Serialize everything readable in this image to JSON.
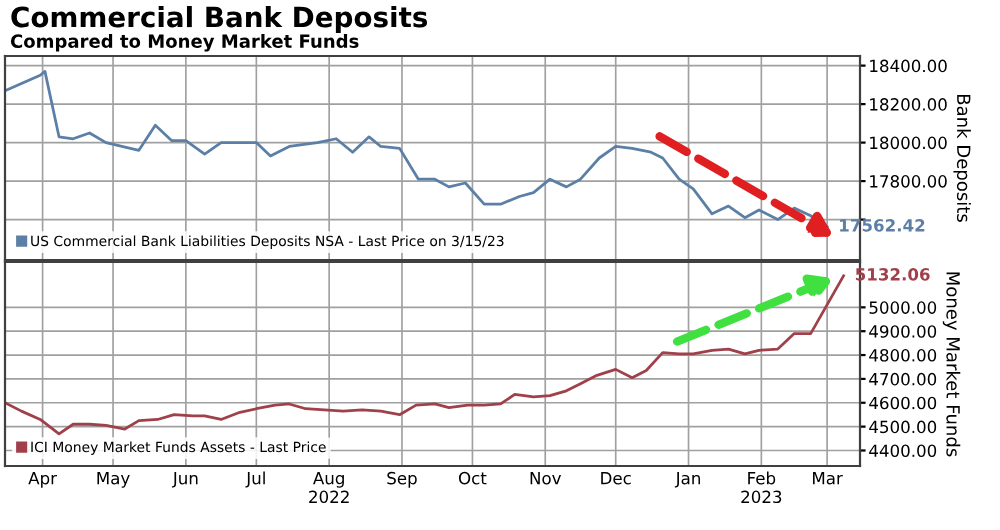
{
  "chart_data": [
    {
      "type": "line",
      "title": "Commercial Bank Deposits",
      "subtitle": "Compared to Money Market Funds",
      "ylabel": "Bank Deposits",
      "xlim": [
        "2022-03-30",
        "2023-03-29"
      ],
      "xticks": [
        {
          "value": "2022-04-15",
          "label": null
        },
        {
          "value": "2022-05-15",
          "label": null
        },
        {
          "value": "2022-06-15",
          "label": null
        },
        {
          "value": "2022-07-15",
          "label": null
        },
        {
          "value": "2022-08-15",
          "label": null
        },
        {
          "value": "2022-09-15",
          "label": null
        },
        {
          "value": "2022-10-15",
          "label": null
        },
        {
          "value": "2022-11-15",
          "label": null
        },
        {
          "value": "2022-12-15",
          "label": null
        },
        {
          "value": "2023-01-15",
          "label": null
        },
        {
          "value": "2023-02-15",
          "label": null
        },
        {
          "value": "2023-03-15",
          "label": null
        }
      ],
      "ylim": [
        17390,
        18450
      ],
      "yticks": [
        {
          "value": 17600,
          "label": null
        },
        {
          "value": 17800,
          "label": "17800.00"
        },
        {
          "value": 18000,
          "label": "18000.00"
        },
        {
          "value": 18200,
          "label": "18200.00"
        },
        {
          "value": 18400,
          "label": "18400.00"
        }
      ],
      "tick_labels": "y",
      "grid": true,
      "legend": "bottom left",
      "marker": "none",
      "line_style": "solid",
      "series": [
        {
          "name": "US Commercial Bank Liabilities Deposits NSA - Last Price on 3/15/23",
          "color": "#5b7fa6",
          "x": [
            "2022-03-30",
            "2022-04-14",
            "2022-04-16",
            "2022-04-22",
            "2022-04-28",
            "2022-05-05",
            "2022-05-12",
            "2022-05-26",
            "2022-06-02",
            "2022-06-09",
            "2022-06-15",
            "2022-06-23",
            "2022-06-30",
            "2022-07-15",
            "2022-07-21",
            "2022-07-29",
            "2022-08-10",
            "2022-08-18",
            "2022-08-25",
            "2022-09-01",
            "2022-09-06",
            "2022-09-14",
            "2022-09-22",
            "2022-09-29",
            "2022-10-05",
            "2022-10-12",
            "2022-10-20",
            "2022-10-27",
            "2022-11-04",
            "2022-11-10",
            "2022-11-17",
            "2022-11-24",
            "2022-11-30",
            "2022-12-08",
            "2022-12-15",
            "2022-12-22",
            "2022-12-30",
            "2023-01-04",
            "2023-01-11",
            "2023-01-17",
            "2023-01-25",
            "2023-02-01",
            "2023-02-08",
            "2023-02-14",
            "2023-02-22",
            "2023-03-01",
            "2023-03-08",
            "2023-03-15"
          ],
          "values": [
            18270,
            18350,
            18370,
            18030,
            18020,
            18050,
            18000,
            17960,
            18090,
            18010,
            18010,
            17940,
            18000,
            18000,
            17930,
            17980,
            18000,
            18020,
            17950,
            18030,
            17980,
            17970,
            17810,
            17810,
            17770,
            17790,
            17680,
            17680,
            17720,
            17740,
            17810,
            17770,
            17810,
            17920,
            17980,
            17970,
            17950,
            17920,
            17810,
            17760,
            17630,
            17670,
            17610,
            17650,
            17600,
            17660,
            17620,
            17562.42
          ],
          "value_labels": [
            null,
            null,
            null,
            null,
            null,
            null,
            null,
            null,
            null,
            null,
            null,
            null,
            null,
            null,
            null,
            null,
            null,
            null,
            null,
            null,
            null,
            null,
            null,
            null,
            null,
            null,
            null,
            null,
            null,
            null,
            null,
            null,
            null,
            null,
            null,
            null,
            null,
            null,
            null,
            null,
            null,
            null,
            null,
            null,
            null,
            null,
            null,
            "17562.42"
          ]
        }
      ]
    },
    {
      "type": "line",
      "ylabel": "Money Market Funds",
      "xlim": [
        "2022-03-30",
        "2023-03-29"
      ],
      "xticks": [
        {
          "value": "2022-04-15",
          "label": "Apr"
        },
        {
          "value": "2022-05-15",
          "label": "May"
        },
        {
          "value": "2022-06-15",
          "label": "Jun"
        },
        {
          "value": "2022-07-15",
          "label": "Jul"
        },
        {
          "value": "2022-08-15",
          "label": "Aug\n2022"
        },
        {
          "value": "2022-09-15",
          "label": "Sep"
        },
        {
          "value": "2022-10-15",
          "label": "Oct"
        },
        {
          "value": "2022-11-15",
          "label": "Nov"
        },
        {
          "value": "2022-12-15",
          "label": "Dec"
        },
        {
          "value": "2023-01-15",
          "label": "Jan"
        },
        {
          "value": "2023-02-15",
          "label": "Feb\n2023"
        },
        {
          "value": "2023-03-15",
          "label": "Mar"
        }
      ],
      "ylim": [
        4335,
        5190
      ],
      "yticks": [
        {
          "value": 4400,
          "label": "4400.00"
        },
        {
          "value": 4500,
          "label": "4500.00"
        },
        {
          "value": 4600,
          "label": "4600.00"
        },
        {
          "value": 4700,
          "label": "4700.00"
        },
        {
          "value": 4800,
          "label": "4800.00"
        },
        {
          "value": 4900,
          "label": "4900.00"
        },
        {
          "value": 5000,
          "label": "5000.00"
        }
      ],
      "grid": true,
      "legend": "bottom left",
      "marker": "none",
      "line_style": "solid",
      "series": [
        {
          "name": "ICI Money Market Funds Assets - Last Price",
          "color": "#a0404a",
          "x": [
            "2022-03-30",
            "2022-04-06",
            "2022-04-14",
            "2022-04-22",
            "2022-04-28",
            "2022-05-05",
            "2022-05-12",
            "2022-05-20",
            "2022-05-26",
            "2022-06-03",
            "2022-06-10",
            "2022-06-18",
            "2022-06-23",
            "2022-06-30",
            "2022-07-08",
            "2022-07-15",
            "2022-07-23",
            "2022-07-29",
            "2022-08-05",
            "2022-08-13",
            "2022-08-21",
            "2022-08-29",
            "2022-09-06",
            "2022-09-14",
            "2022-09-21",
            "2022-09-29",
            "2022-10-05",
            "2022-10-13",
            "2022-10-20",
            "2022-10-27",
            "2022-11-02",
            "2022-11-10",
            "2022-11-17",
            "2022-11-24",
            "2022-11-30",
            "2022-12-07",
            "2022-12-15",
            "2022-12-22",
            "2022-12-28",
            "2023-01-04",
            "2023-01-11",
            "2023-01-17",
            "2023-01-25",
            "2023-02-01",
            "2023-02-08",
            "2023-02-14",
            "2023-02-22",
            "2023-03-01",
            "2023-03-08",
            "2023-03-22"
          ],
          "values": [
            4600,
            4565,
            4530,
            4470,
            4510,
            4510,
            4505,
            4490,
            4525,
            4530,
            4550,
            4545,
            4545,
            4530,
            4560,
            4575,
            4590,
            4595,
            4575,
            4570,
            4565,
            4570,
            4565,
            4550,
            4590,
            4595,
            4580,
            4590,
            4590,
            4595,
            4635,
            4625,
            4630,
            4650,
            4680,
            4715,
            4740,
            4705,
            4735,
            4810,
            4805,
            4805,
            4820,
            4825,
            4805,
            4820,
            4825,
            4890,
            4890,
            5132.06
          ],
          "value_labels": [
            null,
            null,
            null,
            null,
            null,
            null,
            null,
            null,
            null,
            null,
            null,
            null,
            null,
            null,
            null,
            null,
            null,
            null,
            null,
            null,
            null,
            null,
            null,
            null,
            null,
            null,
            null,
            null,
            null,
            null,
            null,
            null,
            null,
            null,
            null,
            null,
            null,
            null,
            null,
            null,
            null,
            null,
            null,
            null,
            null,
            null,
            null,
            null,
            null,
            "5132.06"
          ]
        }
      ]
    }
  ]
}
